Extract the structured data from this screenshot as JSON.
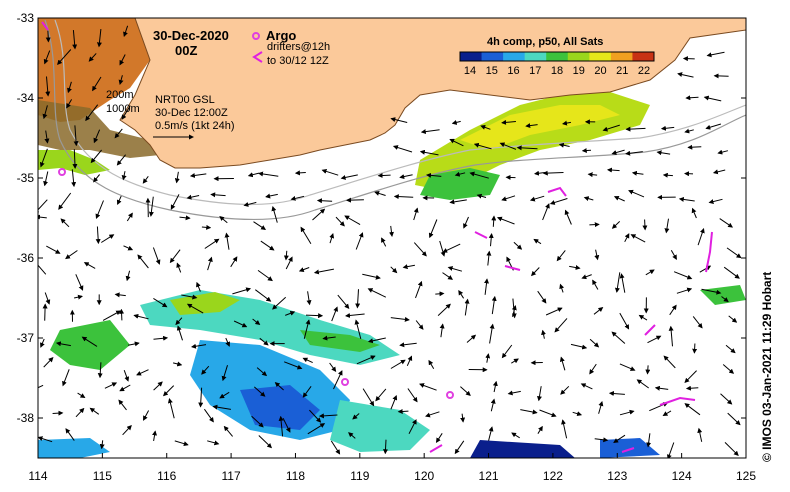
{
  "title": {
    "date": "30-Dec-2020",
    "time": "00Z"
  },
  "argo_legend": {
    "argo_label": "Argo",
    "drifters_line1": "drifters@12h",
    "drifters_line2": "to 30/12 12Z"
  },
  "colorbar": {
    "title": "4h comp, p50, All Sats",
    "ticks": [
      "14",
      "15",
      "16",
      "17",
      "18",
      "19",
      "20",
      "21",
      "22"
    ],
    "colors": [
      "#0a1f8c",
      "#1a5fd6",
      "#28a8e8",
      "#4cd8c0",
      "#3cc23c",
      "#9ad61c",
      "#e6e61a",
      "#f0a020",
      "#c83214"
    ]
  },
  "contours": {
    "label_200": "200m",
    "label_1000": "1000m"
  },
  "current_key": {
    "line1": "NRT00 GSL",
    "line2": "30-Dec 12:00Z",
    "line3": "0.5m/s (1kt 24h)"
  },
  "axes": {
    "x_ticks": [
      "114",
      "115",
      "116",
      "117",
      "118",
      "119",
      "120",
      "121",
      "122",
      "123",
      "124",
      "125"
    ],
    "y_ticks": [
      "-33",
      "-34",
      "-35",
      "-36",
      "-37",
      "-38"
    ]
  },
  "credit": "©  IMOS 03-Jan-2021 11:29 Hobart",
  "colors": {
    "land": "#fbc99a",
    "argo": "#e040e0",
    "drifter": "#e020e0"
  }
}
